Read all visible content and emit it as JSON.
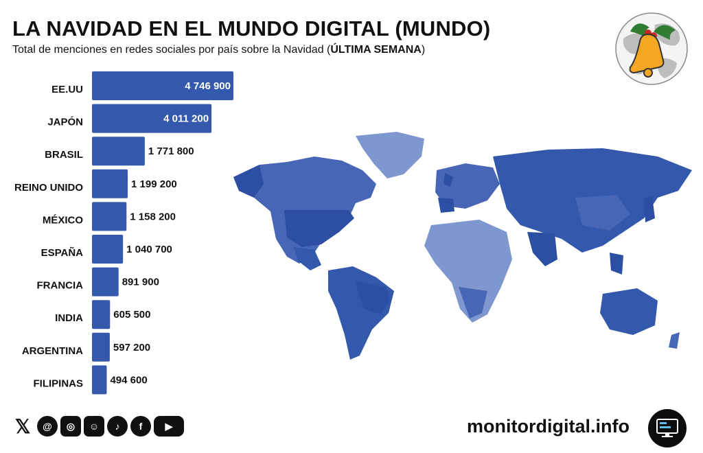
{
  "header": {
    "title": "LA NAVIDAD EN EL MUNDO DIGITAL (MUNDO)",
    "subtitle_prefix": "Total de menciones en redes sociales por país sobre la Navidad (",
    "subtitle_bold": "ÚLTIMA SEMANA",
    "subtitle_suffix": ")"
  },
  "colors": {
    "bar": "#3458ab",
    "map_dark": "#2d4fa3",
    "map_mid": "#4766b5",
    "map_light": "#7f97cf",
    "text": "#111111"
  },
  "chart_data": {
    "type": "bar",
    "orientation": "horizontal",
    "categories": [
      "EE.UU",
      "JAPÓN",
      "BRASIL",
      "REINO UNIDO",
      "MÉXICO",
      "ESPAÑA",
      "FRANCIA",
      "INDIA",
      "ARGENTINA",
      "FILIPINAS"
    ],
    "values": [
      4746900,
      4011200,
      1771800,
      1199200,
      1158200,
      1040700,
      891900,
      605500,
      597200,
      494600
    ],
    "value_labels": [
      "4 746 900",
      "4 011 200",
      "1 771 800",
      "1 199 200",
      "1 158 200",
      "1 040 700",
      "891 900",
      "605 500",
      "597 200",
      "494 600"
    ],
    "xlim": [
      0,
      4746900
    ]
  },
  "decor": {
    "logo_icon": "christmas-bell-globe-icon",
    "map_icon": "world-choropleth-map"
  },
  "footer": {
    "social_icons": [
      "x-icon",
      "threads-icon",
      "instagram-icon",
      "bluesky-icon",
      "tiktok-icon",
      "facebook-icon",
      "youtube-icon"
    ],
    "site": "monitordigital.info",
    "site_icon": "monitor-icon"
  }
}
